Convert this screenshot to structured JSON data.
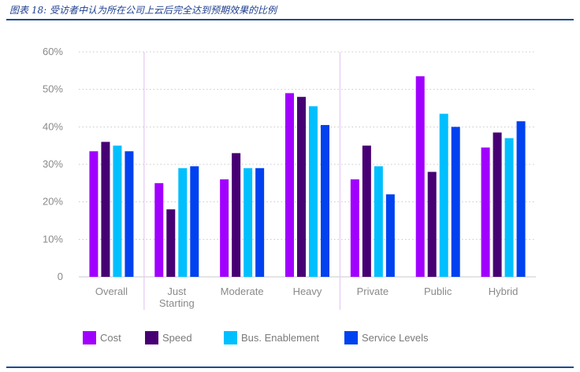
{
  "caption": "图表 18: 受访者中认为所在公司上云后完全达到预期效果的比例",
  "chart_data": {
    "type": "bar",
    "categories": [
      [
        "Overall"
      ],
      [
        "Just",
        "Starting"
      ],
      [
        "Moderate"
      ],
      [
        "Heavy"
      ],
      [
        "Private"
      ],
      [
        "Public"
      ],
      [
        "Hybrid"
      ]
    ],
    "series": [
      {
        "name": "Cost",
        "color": "#a100ff",
        "values": [
          33.5,
          25,
          26,
          49,
          26,
          53.5,
          34.5
        ]
      },
      {
        "name": "Speed",
        "color": "#460073",
        "values": [
          36,
          18,
          33,
          48,
          35,
          28,
          38.5
        ]
      },
      {
        "name": "Bus. Enablement",
        "color": "#00bfff",
        "values": [
          35,
          29,
          29,
          45.5,
          29.5,
          43.5,
          37
        ]
      },
      {
        "name": "Service Levels",
        "color": "#0041f0",
        "values": [
          33.5,
          29.5,
          29,
          40.5,
          22,
          40,
          41.5
        ]
      }
    ],
    "yticks": [
      "0",
      "10%",
      "20%",
      "30%",
      "40%",
      "50%",
      "60%"
    ],
    "ylim": [
      0,
      60
    ],
    "grid": "dotted horizontal",
    "separators_after_category": [
      0,
      3
    ],
    "legend_position": "bottom",
    "title": "",
    "xlabel": "",
    "ylabel": ""
  }
}
